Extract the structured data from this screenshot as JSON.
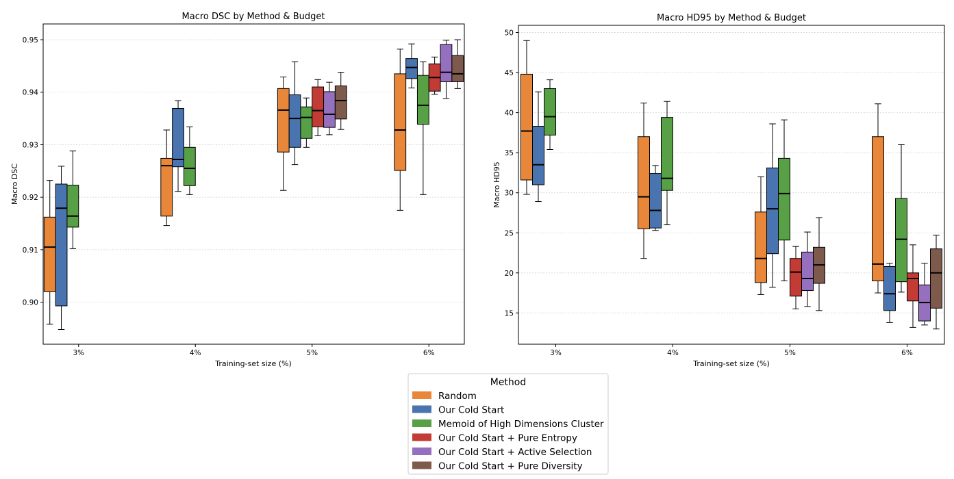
{
  "chart_data": [
    {
      "type": "box",
      "title": "Macro DSC by Method & Budget",
      "xlabel": "Training-set size (%)",
      "ylabel": "Macro DSC",
      "categories": [
        "3%",
        "4%",
        "5%",
        "6%"
      ],
      "ylim": [
        0.892,
        0.953
      ],
      "yticks": [
        0.9,
        0.91,
        0.92,
        0.93,
        0.94,
        0.95
      ],
      "ytick_labels": [
        "0.90",
        "0.91",
        "0.92",
        "0.93",
        "0.94",
        "0.95"
      ],
      "grid": "horizontal dotted",
      "series": [
        {
          "name": "Random",
          "color": "#e8873a",
          "boxes": [
            {
              "cat": "3%",
              "whislo": 0.8958,
              "q1": 0.902,
              "med": 0.9105,
              "q3": 0.9162,
              "whishi": 0.9232
            },
            {
              "cat": "4%",
              "whislo": 0.9146,
              "q1": 0.9164,
              "med": 0.926,
              "q3": 0.9274,
              "whishi": 0.9328
            },
            {
              "cat": "5%",
              "whislo": 0.9213,
              "q1": 0.9286,
              "med": 0.9366,
              "q3": 0.9407,
              "whishi": 0.9429
            },
            {
              "cat": "6%",
              "whislo": 0.9175,
              "q1": 0.9251,
              "med": 0.9328,
              "q3": 0.9435,
              "whishi": 0.9482
            }
          ]
        },
        {
          "name": "Our Cold Start",
          "color": "#4a74b0",
          "boxes": [
            {
              "cat": "3%",
              "whislo": 0.8948,
              "q1": 0.8993,
              "med": 0.9179,
              "q3": 0.9225,
              "whishi": 0.9259
            },
            {
              "cat": "4%",
              "whislo": 0.9211,
              "q1": 0.9258,
              "med": 0.9272,
              "q3": 0.9369,
              "whishi": 0.9384
            },
            {
              "cat": "5%",
              "whislo": 0.9262,
              "q1": 0.9295,
              "med": 0.935,
              "q3": 0.9395,
              "whishi": 0.9458
            },
            {
              "cat": "6%",
              "whislo": 0.9408,
              "q1": 0.9426,
              "med": 0.9447,
              "q3": 0.9464,
              "whishi": 0.9492
            }
          ]
        },
        {
          "name": "Memoid of High Dimensions Cluster",
          "color": "#58a045",
          "boxes": [
            {
              "cat": "3%",
              "whislo": 0.9102,
              "q1": 0.9143,
              "med": 0.9164,
              "q3": 0.9223,
              "whishi": 0.9288
            },
            {
              "cat": "4%",
              "whislo": 0.9205,
              "q1": 0.9222,
              "med": 0.9255,
              "q3": 0.9295,
              "whishi": 0.9334
            },
            {
              "cat": "5%",
              "whislo": 0.9295,
              "q1": 0.9312,
              "med": 0.9352,
              "q3": 0.9372,
              "whishi": 0.9389
            },
            {
              "cat": "6%",
              "whislo": 0.9205,
              "q1": 0.9339,
              "med": 0.9375,
              "q3": 0.9432,
              "whishi": 0.9458
            }
          ]
        },
        {
          "name": "Our Cold Start + Pure Entropy",
          "color": "#c23b35",
          "boxes": [
            {
              "cat": "5%",
              "whislo": 0.9317,
              "q1": 0.9334,
              "med": 0.9365,
              "q3": 0.941,
              "whishi": 0.9424
            },
            {
              "cat": "6%",
              "whislo": 0.9396,
              "q1": 0.9402,
              "med": 0.9428,
              "q3": 0.9454,
              "whishi": 0.9467
            }
          ]
        },
        {
          "name": "Our Cold Start + Active Selection",
          "color": "#9470bf",
          "boxes": [
            {
              "cat": "5%",
              "whislo": 0.9319,
              "q1": 0.9333,
              "med": 0.9358,
              "q3": 0.9401,
              "whishi": 0.9419
            },
            {
              "cat": "6%",
              "whislo": 0.9388,
              "q1": 0.942,
              "med": 0.9438,
              "q3": 0.9491,
              "whishi": 0.9499
            }
          ]
        },
        {
          "name": "Our Cold Start + Pure Diversity",
          "color": "#7e5a4d",
          "boxes": [
            {
              "cat": "5%",
              "whislo": 0.9329,
              "q1": 0.9349,
              "med": 0.9384,
              "q3": 0.9412,
              "whishi": 0.9438
            },
            {
              "cat": "6%",
              "whislo": 0.9407,
              "q1": 0.942,
              "med": 0.9435,
              "q3": 0.947,
              "whishi": 0.95
            }
          ]
        }
      ]
    },
    {
      "type": "box",
      "title": "Macro HD95 by Method & Budget",
      "xlabel": "Training-set size (%)",
      "ylabel": "Macro HD95",
      "categories": [
        "3%",
        "4%",
        "5%",
        "6%"
      ],
      "ylim": [
        11.1,
        50.9
      ],
      "yticks": [
        15,
        20,
        25,
        30,
        35,
        40,
        45,
        50
      ],
      "ytick_labels": [
        "15",
        "20",
        "25",
        "30",
        "35",
        "40",
        "45",
        "50"
      ],
      "grid": "horizontal dotted",
      "series": [
        {
          "name": "Random",
          "color": "#e8873a",
          "boxes": [
            {
              "cat": "3%",
              "whislo": 29.8,
              "q1": 31.6,
              "med": 37.7,
              "q3": 44.8,
              "whishi": 49.0
            },
            {
              "cat": "4%",
              "whislo": 21.8,
              "q1": 25.5,
              "med": 29.5,
              "q3": 37.0,
              "whishi": 41.2
            },
            {
              "cat": "5%",
              "whislo": 17.3,
              "q1": 18.8,
              "med": 21.8,
              "q3": 27.6,
              "whishi": 32.0
            },
            {
              "cat": "6%",
              "whislo": 17.5,
              "q1": 19.0,
              "med": 21.1,
              "q3": 37.0,
              "whishi": 41.1
            }
          ]
        },
        {
          "name": "Our Cold Start",
          "color": "#4a74b0",
          "boxes": [
            {
              "cat": "3%",
              "whislo": 28.9,
              "q1": 31.0,
              "med": 33.5,
              "q3": 38.3,
              "whishi": 42.6
            },
            {
              "cat": "4%",
              "whislo": 25.3,
              "q1": 25.6,
              "med": 27.8,
              "q3": 32.4,
              "whishi": 33.4
            },
            {
              "cat": "5%",
              "whislo": 18.2,
              "q1": 22.4,
              "med": 28.0,
              "q3": 33.1,
              "whishi": 38.6
            },
            {
              "cat": "6%",
              "whislo": 13.8,
              "q1": 15.3,
              "med": 17.4,
              "q3": 20.8,
              "whishi": 21.2
            }
          ]
        },
        {
          "name": "Memoid of High Dimensions Cluster",
          "color": "#58a045",
          "boxes": [
            {
              "cat": "3%",
              "whislo": 35.4,
              "q1": 37.2,
              "med": 39.5,
              "q3": 43.0,
              "whishi": 44.1
            },
            {
              "cat": "4%",
              "whislo": 26.0,
              "q1": 30.3,
              "med": 31.8,
              "q3": 39.4,
              "whishi": 41.4
            },
            {
              "cat": "5%",
              "whislo": 19.0,
              "q1": 24.1,
              "med": 29.9,
              "q3": 34.3,
              "whishi": 39.1
            },
            {
              "cat": "6%",
              "whislo": 17.6,
              "q1": 18.9,
              "med": 24.2,
              "q3": 29.3,
              "whishi": 36.0
            }
          ]
        },
        {
          "name": "Our Cold Start + Pure Entropy",
          "color": "#c23b35",
          "boxes": [
            {
              "cat": "5%",
              "whislo": 15.5,
              "q1": 17.1,
              "med": 20.1,
              "q3": 21.8,
              "whishi": 23.3
            },
            {
              "cat": "6%",
              "whislo": 13.2,
              "q1": 16.5,
              "med": 19.3,
              "q3": 20.0,
              "whishi": 23.5
            }
          ]
        },
        {
          "name": "Our Cold Start + Active Selection",
          "color": "#9470bf",
          "boxes": [
            {
              "cat": "5%",
              "whislo": 15.8,
              "q1": 17.8,
              "med": 19.3,
              "q3": 22.6,
              "whishi": 25.1
            },
            {
              "cat": "6%",
              "whislo": 13.5,
              "q1": 14.0,
              "med": 16.3,
              "q3": 18.5,
              "whishi": 21.2
            }
          ]
        },
        {
          "name": "Our Cold Start + Pure Diversity",
          "color": "#7e5a4d",
          "boxes": [
            {
              "cat": "5%",
              "whislo": 15.3,
              "q1": 18.7,
              "med": 21.0,
              "q3": 23.2,
              "whishi": 26.9
            },
            {
              "cat": "6%",
              "whislo": 13.0,
              "q1": 15.6,
              "med": 20.0,
              "q3": 23.0,
              "whishi": 24.7
            }
          ]
        }
      ]
    }
  ],
  "legend": {
    "title": "Method",
    "position": "bottom-center",
    "items": [
      {
        "label": "Random",
        "color": "#e8873a"
      },
      {
        "label": "Our Cold Start",
        "color": "#4a74b0"
      },
      {
        "label": "Memoid of High Dimensions Cluster",
        "color": "#58a045"
      },
      {
        "label": "Our Cold Start + Pure Entropy",
        "color": "#c23b35"
      },
      {
        "label": "Our Cold Start + Active Selection",
        "color": "#9470bf"
      },
      {
        "label": "Our Cold Start + Pure Diversity",
        "color": "#7e5a4d"
      }
    ]
  }
}
